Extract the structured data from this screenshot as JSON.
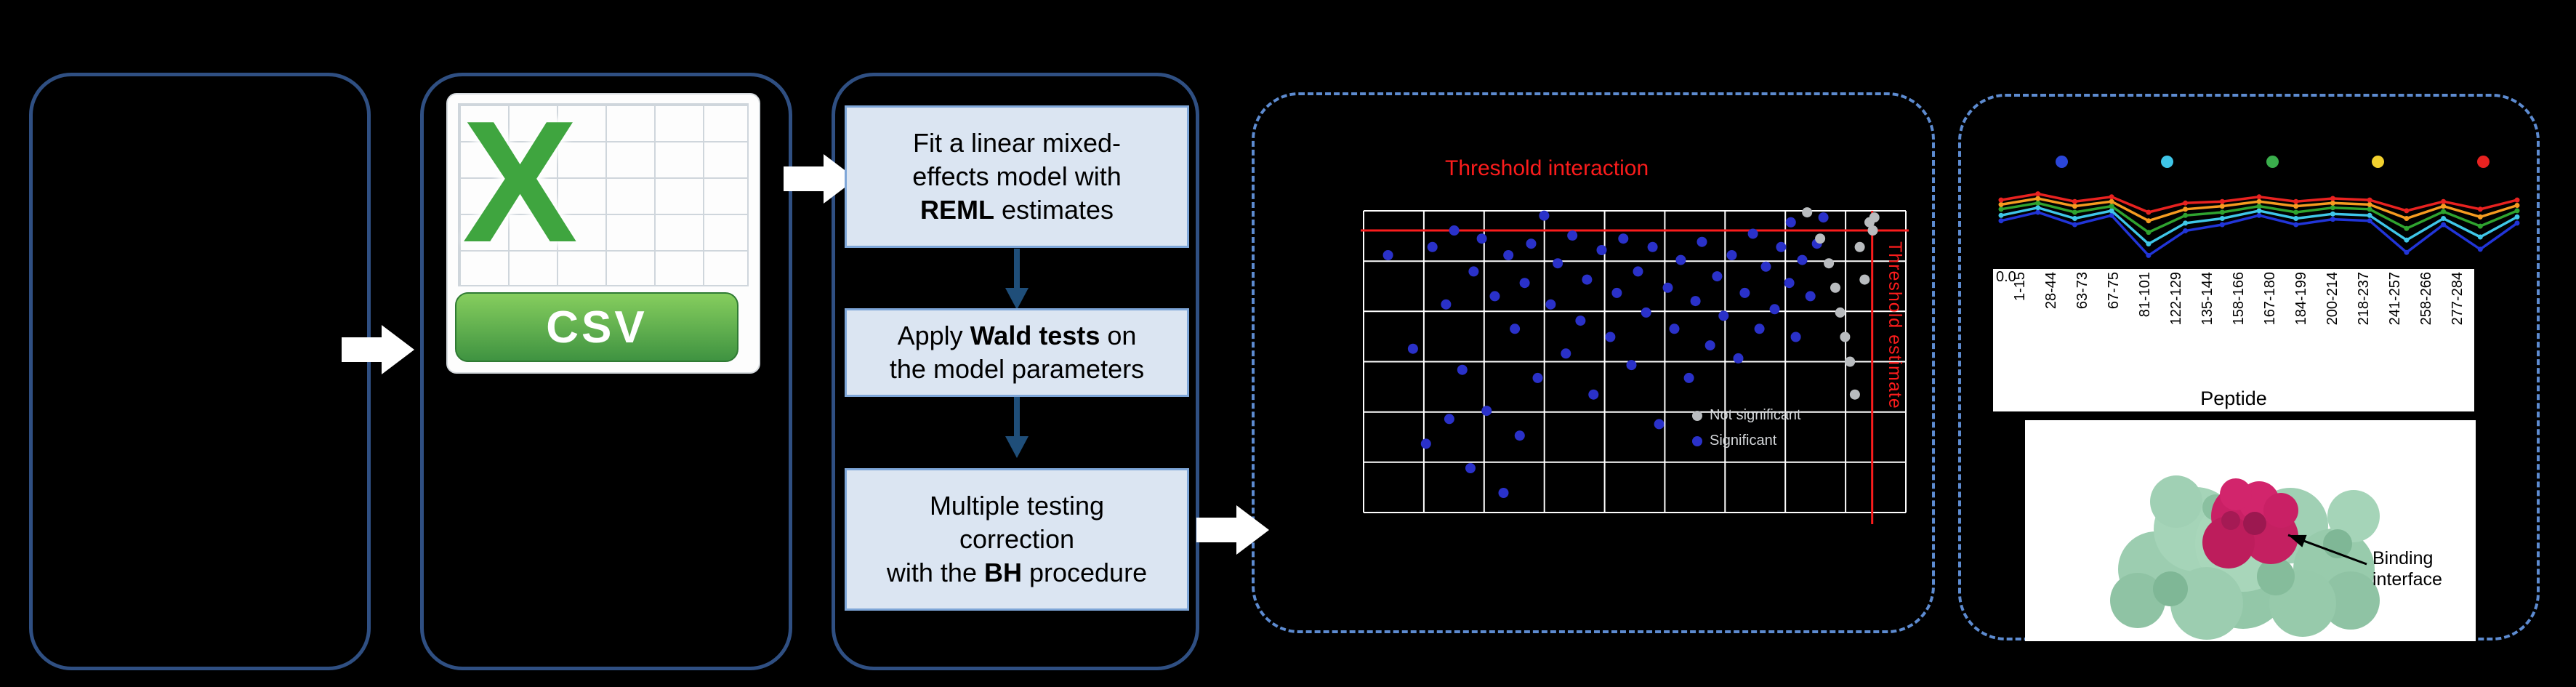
{
  "figure": {
    "panels": {
      "input": {},
      "csv_file": {
        "logo_letter": "X",
        "banner_label": "CSV"
      },
      "pipeline": {
        "steps": [
          {
            "segments": [
              {
                "t": "Fit a linear mixed-\neffects model with\n"
              },
              {
                "t": "REML",
                "b": true
              },
              {
                "t": " estimates"
              }
            ]
          },
          {
            "segments": [
              {
                "t": "Apply "
              },
              {
                "t": "Wald tests",
                "b": true
              },
              {
                "t": " on\nthe model parameters"
              }
            ]
          },
          {
            "segments": [
              {
                "t": "Multiple testing\ncorrection\nwith the "
              },
              {
                "t": "BH",
                "b": true
              },
              {
                "t": " procedure"
              }
            ]
          }
        ]
      },
      "structure": {
        "binding_interface_label": "Binding interface"
      }
    }
  },
  "chart_data": [
    {
      "type": "scatter",
      "plot_bg": "#000000",
      "grid": {
        "cols": 9,
        "rows": 6,
        "color": "#ffffff"
      },
      "threshold_h": {
        "label": "Threshold interaction",
        "y_frac": 0.065,
        "color": "#fb1c1c"
      },
      "threshold_v": {
        "label": "Threshold estimate",
        "x_frac": 0.938,
        "color": "#fb1c1c"
      },
      "series": [
        {
          "name": "significant",
          "color": "#2a31c9",
          "points": [
            [
              0.045,
              0.147
            ],
            [
              0.091,
              0.457
            ],
            [
              0.115,
              0.772
            ],
            [
              0.127,
              0.12
            ],
            [
              0.152,
              0.31
            ],
            [
              0.158,
              0.69
            ],
            [
              0.167,
              0.065
            ],
            [
              0.182,
              0.527
            ],
            [
              0.197,
              0.853
            ],
            [
              0.203,
              0.201
            ],
            [
              0.218,
              0.092
            ],
            [
              0.227,
              0.663
            ],
            [
              0.242,
              0.283
            ],
            [
              0.258,
              0.935
            ],
            [
              0.267,
              0.147
            ],
            [
              0.279,
              0.391
            ],
            [
              0.288,
              0.745
            ],
            [
              0.297,
              0.239
            ],
            [
              0.309,
              0.109
            ],
            [
              0.321,
              0.554
            ],
            [
              0.333,
              0.016
            ],
            [
              0.345,
              0.31
            ],
            [
              0.358,
              0.174
            ],
            [
              0.373,
              0.473
            ],
            [
              0.385,
              0.082
            ],
            [
              0.4,
              0.364
            ],
            [
              0.412,
              0.228
            ],
            [
              0.424,
              0.609
            ],
            [
              0.439,
              0.13
            ],
            [
              0.455,
              0.418
            ],
            [
              0.467,
              0.272
            ],
            [
              0.479,
              0.092
            ],
            [
              0.494,
              0.511
            ],
            [
              0.506,
              0.201
            ],
            [
              0.521,
              0.337
            ],
            [
              0.533,
              0.12
            ],
            [
              0.545,
              0.707
            ],
            [
              0.561,
              0.255
            ],
            [
              0.573,
              0.391
            ],
            [
              0.585,
              0.163
            ],
            [
              0.6,
              0.554
            ],
            [
              0.612,
              0.299
            ],
            [
              0.624,
              0.103
            ],
            [
              0.639,
              0.446
            ],
            [
              0.652,
              0.217
            ],
            [
              0.664,
              0.348
            ],
            [
              0.679,
              0.147
            ],
            [
              0.691,
              0.489
            ],
            [
              0.703,
              0.272
            ],
            [
              0.718,
              0.076
            ],
            [
              0.73,
              0.391
            ],
            [
              0.742,
              0.185
            ],
            [
              0.758,
              0.326
            ],
            [
              0.77,
              0.12
            ],
            [
              0.785,
              0.239
            ],
            [
              0.788,
              0.038
            ],
            [
              0.797,
              0.418
            ],
            [
              0.809,
              0.163
            ],
            [
              0.824,
              0.283
            ],
            [
              0.836,
              0.109
            ],
            [
              0.848,
              0.022
            ]
          ]
        },
        {
          "name": "not_significant",
          "color": "#b9bcbf",
          "points": [
            [
              0.818,
              0.005
            ],
            [
              0.842,
              0.092
            ],
            [
              0.858,
              0.174
            ],
            [
              0.87,
              0.255
            ],
            [
              0.879,
              0.337
            ],
            [
              0.888,
              0.418
            ],
            [
              0.897,
              0.5
            ],
            [
              0.906,
              0.609
            ],
            [
              0.915,
              0.12
            ],
            [
              0.924,
              0.228
            ],
            [
              0.933,
              0.038
            ],
            [
              0.939,
              0.065
            ],
            [
              0.942,
              0.022
            ]
          ]
        }
      ],
      "legend": [
        {
          "label": "Not significant",
          "color": "#b9bcbf"
        },
        {
          "label": "Significant",
          "color": "#2a31c9"
        }
      ]
    },
    {
      "type": "line",
      "categories": [
        "1-15",
        "28-44",
        "63-73",
        "67-75",
        "81-101",
        "122-129",
        "135-144",
        "158-166",
        "167-180",
        "184-199",
        "200-214",
        "218-237",
        "241-257",
        "258-266",
        "277-284"
      ],
      "xlabel": "Peptide",
      "y_tick_label": "0.0",
      "ylim": [
        0,
        1
      ],
      "legend_dot_colors": [
        "#2b46d9",
        "#3fc6e8",
        "#3aae4c",
        "#f2d12e",
        "#e82220"
      ],
      "series": [
        {
          "name": "blue",
          "color": "#2135d8",
          "values": [
            0.55,
            0.66,
            0.5,
            0.62,
            0.1,
            0.42,
            0.5,
            0.62,
            0.5,
            0.57,
            0.55,
            0.14,
            0.5,
            0.18,
            0.52
          ]
        },
        {
          "name": "cyan",
          "color": "#3fc6e8",
          "values": [
            0.62,
            0.72,
            0.58,
            0.68,
            0.25,
            0.52,
            0.58,
            0.68,
            0.58,
            0.64,
            0.62,
            0.3,
            0.58,
            0.34,
            0.6
          ]
        },
        {
          "name": "green",
          "color": "#2fa32f",
          "values": [
            0.7,
            0.78,
            0.66,
            0.74,
            0.4,
            0.62,
            0.66,
            0.74,
            0.66,
            0.72,
            0.7,
            0.45,
            0.67,
            0.48,
            0.68
          ]
        },
        {
          "name": "orange",
          "color": "#f59b20",
          "values": [
            0.76,
            0.84,
            0.74,
            0.8,
            0.55,
            0.7,
            0.74,
            0.8,
            0.74,
            0.78,
            0.76,
            0.58,
            0.74,
            0.6,
            0.75
          ]
        },
        {
          "name": "red",
          "color": "#e82220",
          "values": [
            0.82,
            0.9,
            0.8,
            0.86,
            0.66,
            0.78,
            0.8,
            0.86,
            0.8,
            0.84,
            0.82,
            0.68,
            0.8,
            0.7,
            0.82
          ]
        }
      ]
    }
  ]
}
